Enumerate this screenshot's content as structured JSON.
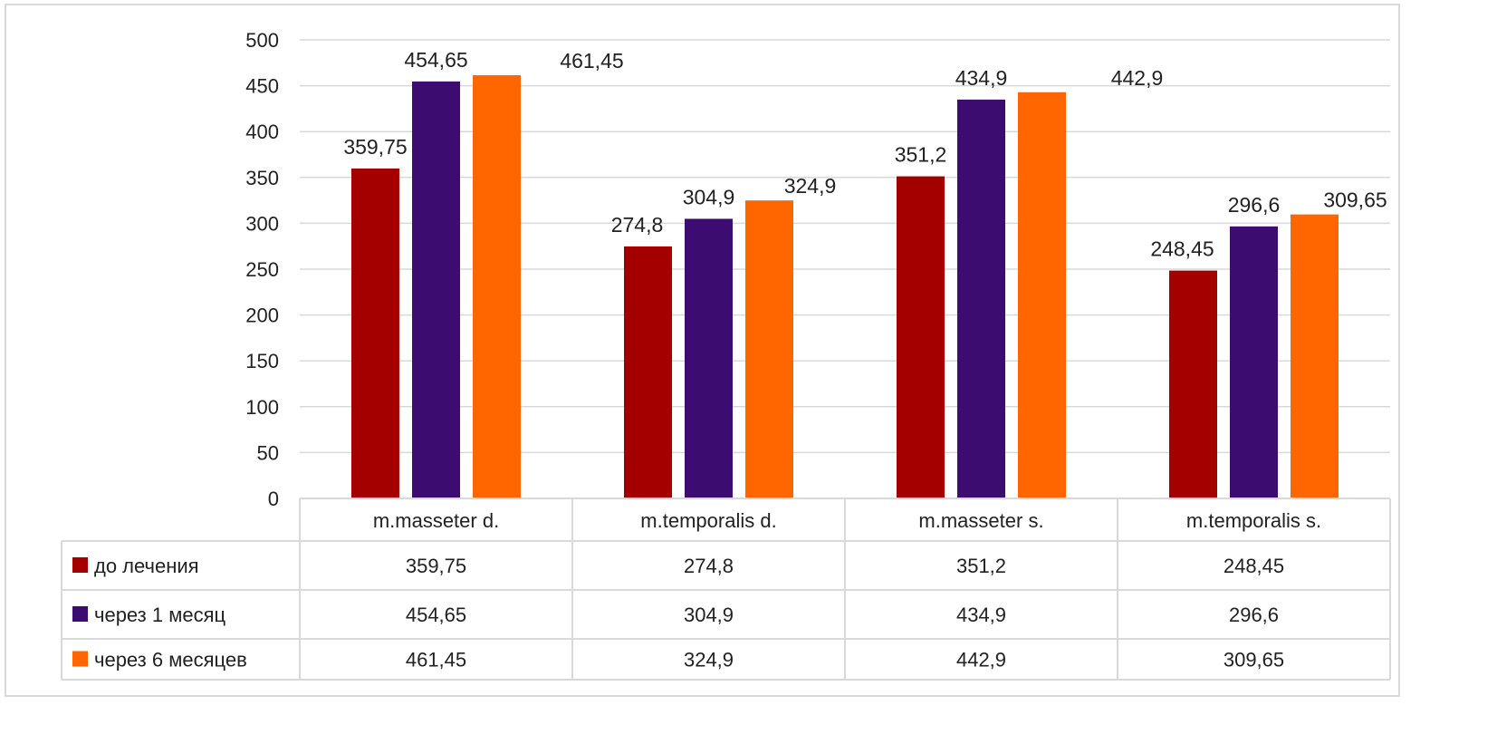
{
  "chart_data": {
    "type": "bar",
    "categories": [
      "m.masseter d.",
      "m.temporalis d.",
      "m.masseter s.",
      "m.temporalis s."
    ],
    "series": [
      {
        "name": "до лечения",
        "color": "#a50000",
        "values": [
          359.75,
          274.8,
          351.2,
          248.45
        ],
        "labels": [
          "359,75",
          "274,8",
          "351,2",
          "248,45"
        ]
      },
      {
        "name": "через 1 месяц",
        "color": "#3d0c70",
        "values": [
          454.65,
          304.9,
          434.9,
          296.6
        ],
        "labels": [
          "454,65",
          "304,9",
          "434,9",
          "296,6"
        ]
      },
      {
        "name": "через 6 месяцев",
        "color": "#ff6600",
        "values": [
          461.45,
          324.9,
          442.9,
          309.65
        ],
        "labels": [
          "461,45",
          "324,9",
          "442,9",
          "309,65"
        ]
      }
    ],
    "yticks": [
      "0",
      "50",
      "100",
      "150",
      "200",
      "250",
      "300",
      "350",
      "400",
      "450",
      "500"
    ],
    "ylim": [
      0,
      500
    ],
    "grid": true,
    "legend": "data-table-below"
  }
}
